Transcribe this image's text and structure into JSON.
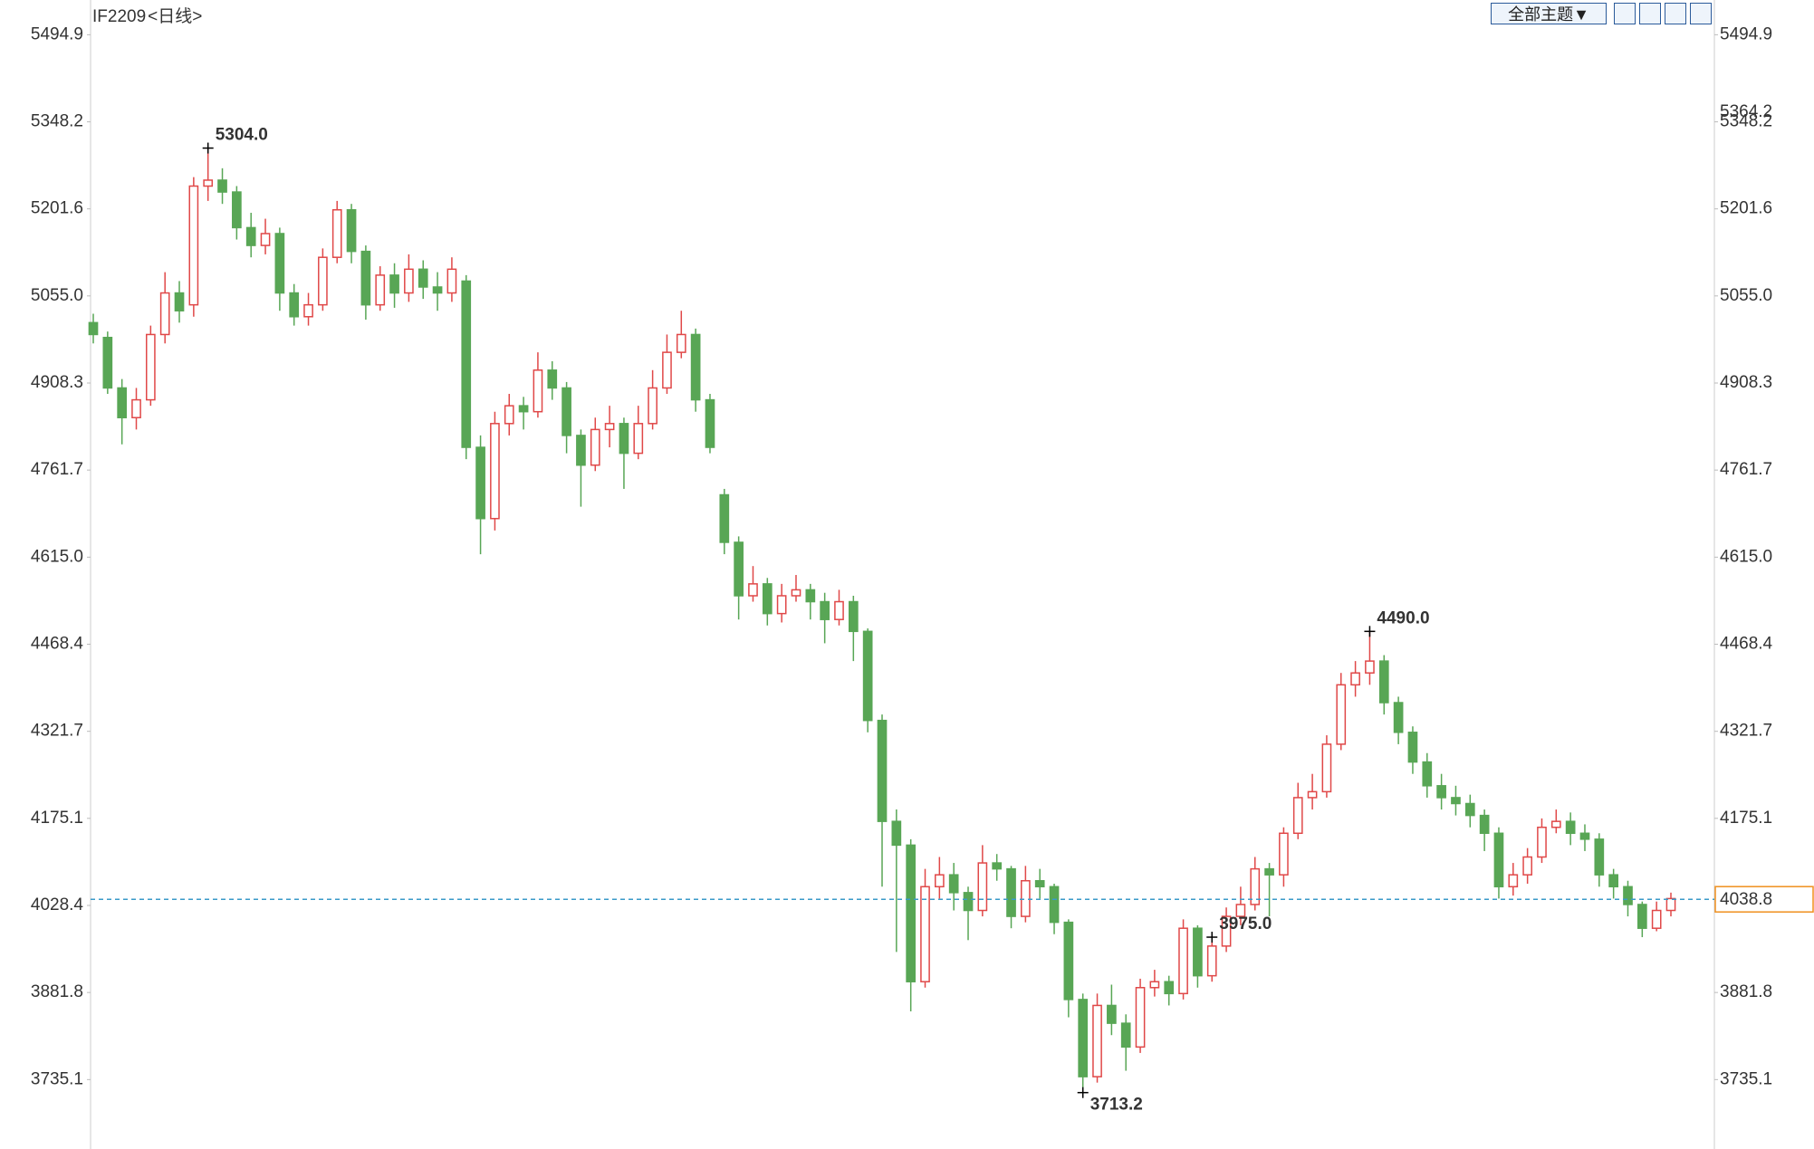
{
  "chart_data": {
    "type": "candlestick",
    "symbol": "IF2209",
    "period": "<日线>",
    "theme_button": "全部主题▼",
    "ylim": [
      3618.2,
      5553.4
    ],
    "yticks": [
      5494.9,
      5348.2,
      5201.6,
      {
        "value": 5055,
        "label": "5055.0"
      },
      4908.3,
      4761.7,
      {
        "value": 4615,
        "label": "4615.0"
      },
      4468.4,
      4321.7,
      4175.1,
      4028.4,
      3881.8,
      3735.1
    ],
    "up_color": "#e04848",
    "down_color": "#58a655",
    "up_hollow": true,
    "values": [
      [
        5010,
        5025,
        4975,
        4990
      ],
      [
        4985,
        4995,
        4890,
        4900
      ],
      [
        4900,
        4915,
        4805,
        4850
      ],
      [
        4850,
        4900,
        4830,
        4880
      ],
      [
        4880,
        5005,
        4870,
        4990
      ],
      [
        4990,
        5095,
        4975,
        5060
      ],
      [
        5060,
        5080,
        5010,
        5030
      ],
      [
        5040,
        5255,
        5020,
        5240
      ],
      [
        5240,
        5304,
        5215,
        5250
      ],
      [
        5250,
        5270,
        5210,
        5230
      ],
      [
        5230,
        5240,
        5150,
        5170
      ],
      [
        5170,
        5195,
        5120,
        5140
      ],
      [
        5140,
        5185,
        5125,
        5160
      ],
      [
        5160,
        5170,
        5030,
        5060
      ],
      [
        5060,
        5075,
        5005,
        5020
      ],
      [
        5020,
        5060,
        5005,
        5040
      ],
      [
        5040,
        5135,
        5030,
        5120
      ],
      [
        5120,
        5215,
        5110,
        5200
      ],
      [
        5200,
        5210,
        5110,
        5130
      ],
      [
        5130,
        5140,
        5015,
        5040
      ],
      [
        5040,
        5105,
        5030,
        5090
      ],
      [
        5090,
        5110,
        5035,
        5060
      ],
      [
        5060,
        5125,
        5045,
        5100
      ],
      [
        5100,
        5115,
        5050,
        5070
      ],
      [
        5070,
        5095,
        5030,
        5060
      ],
      [
        5060,
        5120,
        5045,
        5100
      ],
      [
        5080,
        5090,
        4780,
        4800
      ],
      [
        4800,
        4820,
        4620,
        4680
      ],
      [
        4680,
        4860,
        4660,
        4840
      ],
      [
        4840,
        4890,
        4820,
        4870
      ],
      [
        4870,
        4885,
        4830,
        4860
      ],
      [
        4860,
        4960,
        4850,
        4930
      ],
      [
        4930,
        4945,
        4880,
        4900
      ],
      [
        4900,
        4910,
        4790,
        4820
      ],
      [
        4820,
        4830,
        4700,
        4770
      ],
      [
        4770,
        4850,
        4760,
        4830
      ],
      [
        4830,
        4870,
        4800,
        4840
      ],
      [
        4840,
        4850,
        4730,
        4790
      ],
      [
        4790,
        4870,
        4780,
        4840
      ],
      [
        4840,
        4930,
        4830,
        4900
      ],
      [
        4900,
        4990,
        4890,
        4960
      ],
      [
        4960,
        5030,
        4950,
        4990
      ],
      [
        4990,
        5000,
        4860,
        4880
      ],
      [
        4880,
        4890,
        4790,
        4800
      ],
      [
        4720,
        4730,
        4620,
        4640
      ],
      [
        4640,
        4650,
        4510,
        4550
      ],
      [
        4550,
        4600,
        4540,
        4570
      ],
      [
        4570,
        4580,
        4500,
        4520
      ],
      [
        4520,
        4570,
        4505,
        4550
      ],
      [
        4550,
        4585,
        4540,
        4560
      ],
      [
        4560,
        4570,
        4510,
        4540
      ],
      [
        4540,
        4555,
        4470,
        4510
      ],
      [
        4510,
        4560,
        4500,
        4540
      ],
      [
        4540,
        4550,
        4440,
        4490
      ],
      [
        4490,
        4495,
        4320,
        4340
      ],
      [
        4340,
        4350,
        4060,
        4170
      ],
      [
        4170,
        4190,
        3950,
        4130
      ],
      [
        4130,
        4140,
        3850,
        3900
      ],
      [
        3900,
        4090,
        3890,
        4060
      ],
      [
        4060,
        4110,
        4040,
        4080
      ],
      [
        4080,
        4100,
        4020,
        4050
      ],
      [
        4050,
        4060,
        3970,
        4020
      ],
      [
        4020,
        4130,
        4010,
        4100
      ],
      [
        4100,
        4115,
        4070,
        4090
      ],
      [
        4090,
        4095,
        3990,
        4010
      ],
      [
        4010,
        4095,
        4000,
        4070
      ],
      [
        4070,
        4090,
        4040,
        4060
      ],
      [
        4060,
        4065,
        3980,
        4000
      ],
      [
        4000,
        4005,
        3840,
        3870
      ],
      [
        3870,
        3880,
        3713.2,
        3740
      ],
      [
        3740,
        3880,
        3730,
        3860
      ],
      [
        3860,
        3895,
        3810,
        3830
      ],
      [
        3830,
        3845,
        3750,
        3790
      ],
      [
        3790,
        3905,
        3780,
        3890
      ],
      [
        3890,
        3920,
        3875,
        3900
      ],
      [
        3900,
        3910,
        3860,
        3880
      ],
      [
        3880,
        4005,
        3870,
        3990
      ],
      [
        3990,
        3995,
        3890,
        3910
      ],
      [
        3910,
        3975,
        3900,
        3960
      ],
      [
        3960,
        4025,
        3950,
        4010
      ],
      [
        4010,
        4060,
        3995,
        4030
      ],
      [
        4030,
        4110,
        4020,
        4090
      ],
      [
        4090,
        4100,
        4010,
        4080
      ],
      [
        4080,
        4160,
        4060,
        4150
      ],
      [
        4150,
        4235,
        4140,
        4210
      ],
      [
        4210,
        4250,
        4190,
        4220
      ],
      [
        4220,
        4315,
        4210,
        4300
      ],
      [
        4300,
        4420,
        4290,
        4400
      ],
      [
        4400,
        4440,
        4380,
        4420
      ],
      [
        4420,
        4490,
        4400,
        4440
      ],
      [
        4440,
        4450,
        4350,
        4370
      ],
      [
        4370,
        4380,
        4300,
        4320
      ],
      [
        4320,
        4330,
        4250,
        4270
      ],
      [
        4270,
        4285,
        4210,
        4230
      ],
      [
        4230,
        4250,
        4190,
        4210
      ],
      [
        4210,
        4230,
        4180,
        4200
      ],
      [
        4200,
        4215,
        4160,
        4180
      ],
      [
        4180,
        4190,
        4120,
        4150
      ],
      [
        4150,
        4160,
        4040,
        4060
      ],
      [
        4060,
        4100,
        4045,
        4080
      ],
      [
        4080,
        4125,
        4065,
        4110
      ],
      [
        4110,
        4175,
        4100,
        4160
      ],
      [
        4160,
        4190,
        4150,
        4170
      ],
      [
        4170,
        4185,
        4130,
        4150
      ],
      [
        4150,
        4165,
        4120,
        4140
      ],
      [
        4140,
        4150,
        4060,
        4080
      ],
      [
        4080,
        4090,
        4040,
        4060
      ],
      [
        4060,
        4070,
        4010,
        4030
      ],
      [
        4030,
        4035,
        3975,
        3990
      ],
      [
        3990,
        4035,
        3985,
        4020
      ],
      [
        4020,
        4050,
        4010,
        4040
      ]
    ],
    "annotations": [
      {
        "value": {
          "value": 5304,
          "label": "5304.0"
        },
        "color": "#e04848"
      },
      {
        "value": {
          "value": 4490,
          "label": "4490.0"
        },
        "color": "#e04848"
      },
      {
        "value": 3713.2,
        "color": "#58a655"
      },
      {
        "value": {
          "value": 3975,
          "label": "3975.0"
        },
        "color": "#58a655"
      }
    ],
    "crosshair_price": 5364.2,
    "last_price": 4038.8,
    "last_price_color": "#f0901e",
    "last_line_color": "#3a9ac8"
  }
}
